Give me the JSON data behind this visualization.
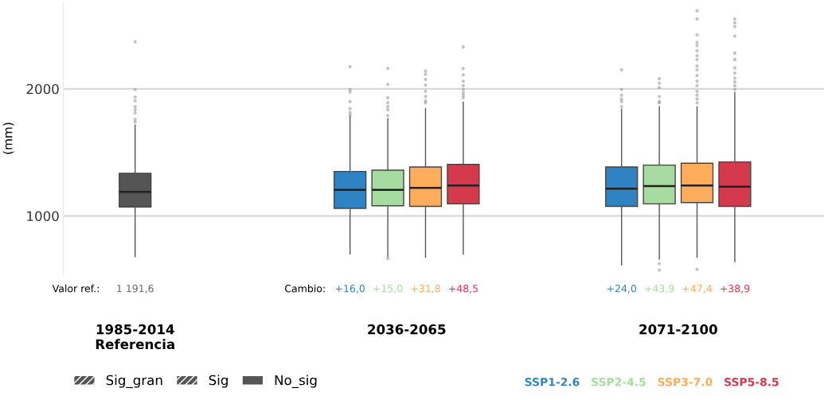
{
  "chart_data": {
    "type": "box",
    "ylabel": "(mm)",
    "categories": [
      "1985-2014\nReferencia",
      "2036-2065",
      "2071-2100"
    ],
    "ylim": [
      540,
      2680
    ],
    "yticks": [
      1000,
      2000
    ],
    "grid": "y",
    "legend": "bottom",
    "annotations": [
      "Valor ref.:",
      "Cambio:",
      "Sig_gran",
      "Sig",
      "No_sig"
    ],
    "series": [
      {
        "color": "#555555",
        "value_labels": [
          "1 191,6",
          null,
          null
        ],
        "boxes": [
          {
            "low": 680,
            "q1": 1070,
            "median": 1190,
            "q3": 1335,
            "high": 1715,
            "outliers": [
              2370,
              1995,
              1935,
              1905,
              1860,
              1835,
              1810,
              1760,
              1740
            ]
          },
          null,
          null
        ]
      },
      {
        "name": "SSP1-2.6",
        "color": "#2f83c2",
        "value_labels": [
          null,
          "+16,0",
          "+24,0"
        ],
        "boxes": [
          null,
          {
            "low": 700,
            "q1": 1060,
            "median": 1205,
            "q3": 1350,
            "high": 1785,
            "outliers": [
              2175,
              1995,
              1975,
              1900,
              1845,
              1815,
              1795
            ]
          },
          {
            "low": 615,
            "q1": 1075,
            "median": 1215,
            "q3": 1385,
            "high": 1840,
            "outliers": [
              2150,
              1995,
              1950,
              1920,
              1900,
              1860
            ]
          }
        ]
      },
      {
        "name": "SSP2-4.5",
        "color": "#a7dca0",
        "value_labels": [
          null,
          "+15,0",
          "+43,9"
        ],
        "boxes": [
          null,
          {
            "low": 680,
            "q1": 1080,
            "median": 1205,
            "q3": 1360,
            "high": 1765,
            "outliers": [
              2160,
              2035,
              1930,
              1890,
              1860,
              1835,
              1790,
              665
            ]
          },
          {
            "low": 660,
            "q1": 1095,
            "median": 1235,
            "q3": 1400,
            "high": 1860,
            "outliers": [
              2080,
              2045,
              2010,
              1940,
              1900,
              1890,
              625,
              575
            ]
          }
        ]
      },
      {
        "name": "SSP3-7.0",
        "color": "#fdad5c",
        "value_labels": [
          null,
          "+31,8",
          "+47,4"
        ],
        "boxes": [
          null,
          {
            "low": 675,
            "q1": 1075,
            "median": 1220,
            "q3": 1385,
            "high": 1845,
            "outliers": [
              2140,
              2115,
              2075,
              2030,
              1980,
              1940,
              1905,
              1890
            ]
          },
          {
            "low": 675,
            "q1": 1105,
            "median": 1240,
            "q3": 1415,
            "high": 1860,
            "outliers": [
              2615,
              2550,
              2425,
              2365,
              2340,
              2300,
              2260,
              2230,
              2180,
              2150,
              2105,
              2060,
              2025,
              1980,
              1950,
              1920,
              1890,
              580
            ]
          }
        ]
      },
      {
        "name": "SSP5-8.5",
        "color": "#d5394c",
        "value_labels": [
          null,
          "+48,5",
          "+38,9"
        ],
        "boxes": [
          null,
          {
            "low": 700,
            "q1": 1095,
            "median": 1240,
            "q3": 1405,
            "high": 1895,
            "outliers": [
              2330,
              2160,
              2110,
              2060,
              2025,
              1995,
              1970,
              1950,
              1930
            ]
          },
          {
            "low": 640,
            "q1": 1075,
            "median": 1230,
            "q3": 1425,
            "high": 1970,
            "outliers": [
              2550,
              2520,
              2490,
              2415,
              2280,
              2230,
              2165,
              2125,
              2085,
              2055,
              2025,
              1995
            ]
          }
        ]
      }
    ]
  }
}
